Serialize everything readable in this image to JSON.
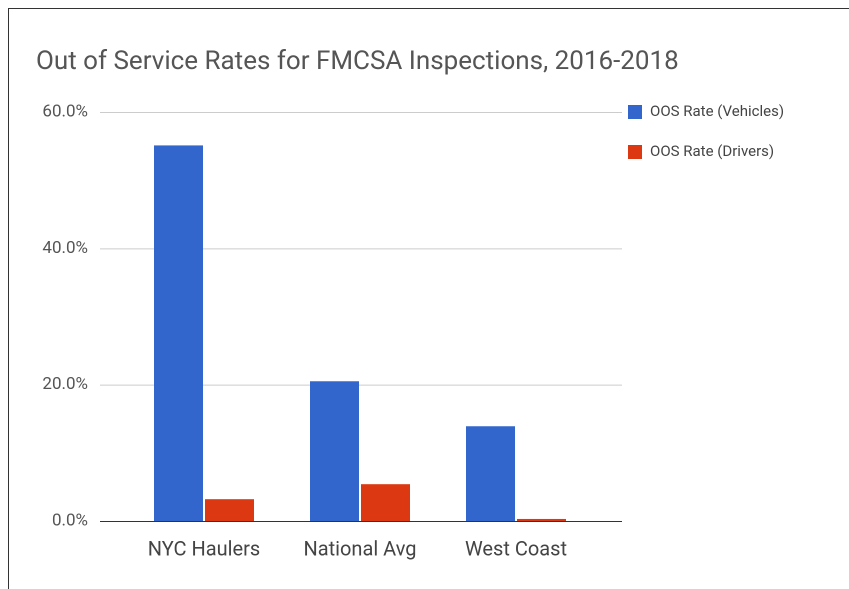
{
  "chart_data": {
    "type": "bar",
    "title": "Out of Service Rates for FMCSA Inspections, 2016-2018",
    "categories": [
      "NYC Haulers",
      "National Avg",
      "West Coast"
    ],
    "series": [
      {
        "name": "OOS Rate (Vehicles)",
        "color": "#3366cc",
        "values": [
          55.1,
          20.5,
          13.9
        ]
      },
      {
        "name": "OOS Rate (Drivers)",
        "color": "#dc3912",
        "values": [
          3.2,
          5.4,
          0.3
        ]
      }
    ],
    "ylim": [
      0,
      60
    ],
    "yticks": [
      {
        "value": 0,
        "label": "0.0%"
      },
      {
        "value": 20,
        "label": "20.0%"
      },
      {
        "value": 40,
        "label": "40.0%"
      },
      {
        "value": 60,
        "label": "60.0%"
      }
    ],
    "grid": true,
    "legend": "right"
  }
}
